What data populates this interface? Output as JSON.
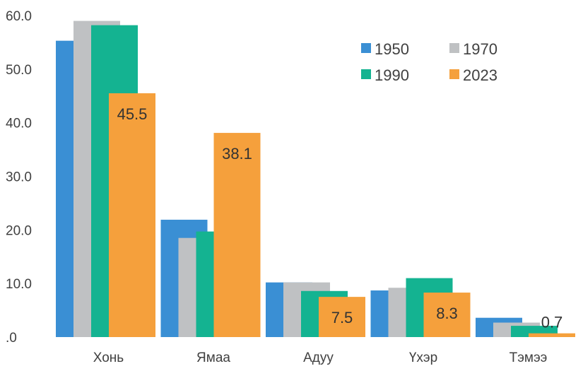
{
  "chart_data": {
    "type": "bar",
    "title": "",
    "xlabel": "",
    "ylabel": "",
    "ylim": [
      0,
      60
    ],
    "yticks": [
      "60.0",
      "50.0",
      "40.0",
      "30.0",
      "20.0",
      "10.0",
      ".0"
    ],
    "grid": false,
    "legend_position": "top-right",
    "categories": [
      "Хонь",
      "Ямаа",
      "Адуу",
      "Үхэр",
      "Тэмээ"
    ],
    "series": [
      {
        "name": "1950",
        "color": "#3a8fd4",
        "values": [
          55.3,
          21.9,
          10.2,
          8.7,
          3.6
        ]
      },
      {
        "name": "1970",
        "color": "#bfc1c3",
        "values": [
          59.0,
          18.5,
          10.2,
          9.2,
          2.7
        ]
      },
      {
        "name": "1990",
        "color": "#14b391",
        "values": [
          58.2,
          19.7,
          8.6,
          11.0,
          2.1
        ]
      },
      {
        "name": "2023",
        "color": "#f5a03c",
        "values": [
          45.5,
          38.1,
          7.5,
          8.3,
          0.7
        ]
      }
    ],
    "data_labels": [
      {
        "series": "2023",
        "category": "Хонь",
        "text": "45.5"
      },
      {
        "series": "2023",
        "category": "Ямаа",
        "text": "38.1"
      },
      {
        "series": "2023",
        "category": "Адуу",
        "text": "7.5"
      },
      {
        "series": "2023",
        "category": "Үхэр",
        "text": "8.3"
      },
      {
        "series": "2023",
        "category": "Тэмээ",
        "text": "0.7"
      }
    ]
  }
}
